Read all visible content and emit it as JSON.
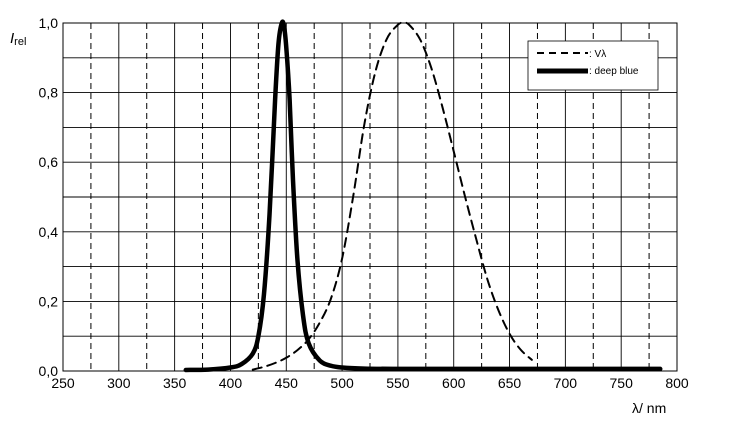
{
  "chart_data": {
    "type": "line",
    "title": "",
    "ylabel_main": "I",
    "ylabel_sub": "rel",
    "xlabel": "λ/ nm",
    "xlim": [
      250,
      800
    ],
    "ylim": [
      0,
      1.0
    ],
    "x_ticks": [
      250,
      300,
      350,
      400,
      450,
      500,
      550,
      600,
      650,
      700,
      750,
      800
    ],
    "x_tick_labels": [
      "250",
      "300",
      "350",
      "400",
      "450",
      "500",
      "550",
      "600",
      "650",
      "700",
      "750",
      "800"
    ],
    "y_ticks": [
      0,
      0.2,
      0.4,
      0.6,
      0.8,
      1.0
    ],
    "y_tick_labels": [
      "0,0",
      "0,2",
      "0,4",
      "0,6",
      "0,8",
      "1,0"
    ],
    "grid": true,
    "legend_position": "top-right",
    "series": [
      {
        "name": ": Vλ",
        "style": "dashed",
        "color": "#000000",
        "x": [
          420,
          430,
          440,
          450,
          460,
          470,
          480,
          490,
          500,
          510,
          520,
          530,
          540,
          550,
          555,
          560,
          570,
          580,
          590,
          600,
          610,
          620,
          630,
          640,
          650,
          660,
          670
        ],
        "values": [
          0.004,
          0.012,
          0.023,
          0.038,
          0.06,
          0.091,
          0.139,
          0.208,
          0.323,
          0.503,
          0.71,
          0.862,
          0.954,
          0.995,
          1.0,
          0.995,
          0.952,
          0.87,
          0.757,
          0.631,
          0.503,
          0.381,
          0.265,
          0.175,
          0.107,
          0.061,
          0.032
        ]
      },
      {
        "name": ": deep  blue",
        "style": "solid-thick",
        "color": "#000000",
        "x": [
          360,
          380,
          400,
          410,
          420,
          425,
          430,
          435,
          440,
          443,
          446,
          448,
          450,
          453,
          456,
          460,
          465,
          470,
          480,
          490,
          500,
          520,
          550,
          600,
          650,
          700,
          750,
          785
        ],
        "values": [
          0.003,
          0.004,
          0.01,
          0.02,
          0.05,
          0.1,
          0.22,
          0.45,
          0.78,
          0.94,
          1.0,
          0.99,
          0.93,
          0.78,
          0.55,
          0.32,
          0.16,
          0.08,
          0.03,
          0.015,
          0.01,
          0.007,
          0.006,
          0.006,
          0.006,
          0.006,
          0.006,
          0.006
        ]
      }
    ]
  }
}
